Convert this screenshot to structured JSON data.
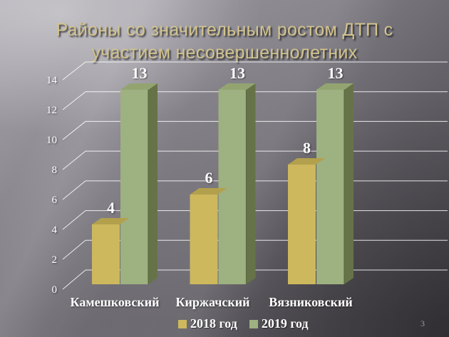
{
  "slide": {
    "title": "Районы со значительным ростом ДТП с участием несовершеннолетних",
    "page_number": "3"
  },
  "chart_data": {
    "type": "bar",
    "style": "3d-clustered-column",
    "title": "Районы со значительным ростом ДТП с участием несовершеннолетних",
    "categories": [
      "Камешковский",
      "Киржачский",
      "Вязниковский"
    ],
    "series": [
      {
        "name": "2018 год",
        "values": [
          4,
          6,
          8
        ],
        "color": "#cdb85e",
        "top_color": "#b2a04d",
        "side_color": "#9a8a40"
      },
      {
        "name": "2019 год",
        "values": [
          13,
          13,
          13
        ],
        "color": "#9eb181",
        "top_color": "#93a471",
        "side_color": "#667348",
        "edge_color": "#5d6943"
      }
    ],
    "yticks": [
      0,
      2,
      4,
      6,
      8,
      10,
      12,
      14
    ],
    "ylim": [
      0,
      14
    ],
    "grid": true,
    "gridline_color": "rgba(255,255,255,0.85)",
    "value_labels": true,
    "legend_position": "bottom",
    "text_color": "#ffffff"
  }
}
